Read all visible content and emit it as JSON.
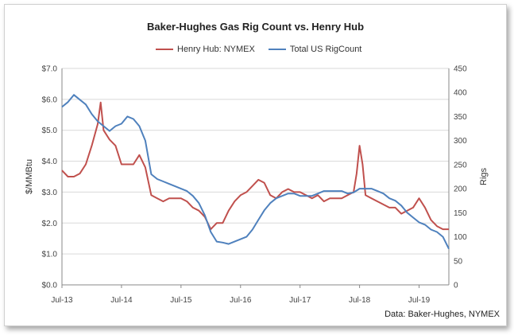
{
  "chart_data": {
    "type": "line",
    "title": "Baker-Hughes Gas Rig Count vs. Henry Hub",
    "source": "Data: Baker-Hughes, NYMEX",
    "ylabel_left": "$/MMBtu",
    "ylabel_right": "Rigs",
    "ylim_left": [
      0,
      7
    ],
    "ylim_right": [
      0,
      450
    ],
    "yticks_left": [
      "$0.0",
      "$1.0",
      "$2.0",
      "$3.0",
      "$4.0",
      "$5.0",
      "$6.0",
      "$7.0"
    ],
    "yticks_right": [
      "0",
      "50",
      "100",
      "150",
      "200",
      "250",
      "300",
      "350",
      "400",
      "450"
    ],
    "xticks": [
      "Jul-13",
      "Jul-14",
      "Jul-15",
      "Jul-16",
      "Jul-17",
      "Jul-18",
      "Jul-19"
    ],
    "x_range": [
      2013.5,
      2020.0
    ],
    "grid": "horizontal",
    "legend": "top-center",
    "series": [
      {
        "name": "Henry Hub: NYMEX",
        "axis": "left",
        "color": "#c0504d",
        "x": [
          2013.5,
          2013.6,
          2013.7,
          2013.8,
          2013.9,
          2014.0,
          2014.1,
          2014.15,
          2014.2,
          2014.3,
          2014.4,
          2014.5,
          2014.6,
          2014.7,
          2014.8,
          2014.9,
          2015.0,
          2015.1,
          2015.2,
          2015.3,
          2015.4,
          2015.5,
          2015.6,
          2015.7,
          2015.8,
          2015.9,
          2016.0,
          2016.1,
          2016.2,
          2016.3,
          2016.4,
          2016.5,
          2016.6,
          2016.7,
          2016.8,
          2016.9,
          2017.0,
          2017.1,
          2017.2,
          2017.3,
          2017.4,
          2017.5,
          2017.6,
          2017.7,
          2017.8,
          2017.9,
          2018.0,
          2018.1,
          2018.2,
          2018.3,
          2018.4,
          2018.45,
          2018.5,
          2018.55,
          2018.6,
          2018.7,
          2018.8,
          2018.9,
          2019.0,
          2019.1,
          2019.2,
          2019.3,
          2019.4,
          2019.5,
          2019.6,
          2019.7,
          2019.8,
          2019.9,
          2020.0
        ],
        "values": [
          3.7,
          3.5,
          3.5,
          3.6,
          3.9,
          4.5,
          5.2,
          5.9,
          5.0,
          4.7,
          4.5,
          3.9,
          3.9,
          3.9,
          4.2,
          3.8,
          2.9,
          2.8,
          2.7,
          2.8,
          2.8,
          2.8,
          2.7,
          2.5,
          2.4,
          2.2,
          1.8,
          2.0,
          2.0,
          2.4,
          2.7,
          2.9,
          3.0,
          3.2,
          3.4,
          3.3,
          2.9,
          2.8,
          3.0,
          3.1,
          3.0,
          3.0,
          2.9,
          2.8,
          2.9,
          2.7,
          2.8,
          2.8,
          2.8,
          2.9,
          3.0,
          3.6,
          4.5,
          3.9,
          2.9,
          2.8,
          2.7,
          2.6,
          2.5,
          2.5,
          2.3,
          2.4,
          2.5,
          2.8,
          2.5,
          2.1,
          1.9,
          1.8,
          1.8
        ]
      },
      {
        "name": "Total US RigCount",
        "axis": "right",
        "color": "#4f81bd",
        "x": [
          2013.5,
          2013.6,
          2013.7,
          2013.8,
          2013.9,
          2014.0,
          2014.1,
          2014.2,
          2014.3,
          2014.4,
          2014.5,
          2014.6,
          2014.7,
          2014.8,
          2014.9,
          2015.0,
          2015.1,
          2015.2,
          2015.3,
          2015.4,
          2015.5,
          2015.6,
          2015.7,
          2015.8,
          2015.9,
          2016.0,
          2016.1,
          2016.2,
          2016.3,
          2016.4,
          2016.5,
          2016.6,
          2016.7,
          2016.8,
          2016.9,
          2017.0,
          2017.1,
          2017.2,
          2017.3,
          2017.4,
          2017.5,
          2017.6,
          2017.7,
          2017.8,
          2017.9,
          2018.0,
          2018.1,
          2018.2,
          2018.3,
          2018.4,
          2018.5,
          2018.6,
          2018.7,
          2018.8,
          2018.9,
          2019.0,
          2019.1,
          2019.2,
          2019.3,
          2019.4,
          2019.5,
          2019.6,
          2019.7,
          2019.8,
          2019.9,
          2020.0
        ],
        "values": [
          370,
          380,
          395,
          385,
          375,
          355,
          340,
          330,
          320,
          330,
          335,
          350,
          345,
          330,
          300,
          230,
          220,
          215,
          210,
          205,
          200,
          195,
          185,
          170,
          145,
          110,
          90,
          88,
          85,
          90,
          95,
          100,
          115,
          135,
          155,
          170,
          180,
          185,
          190,
          190,
          185,
          185,
          185,
          190,
          195,
          195,
          195,
          195,
          190,
          192,
          200,
          200,
          200,
          195,
          190,
          180,
          175,
          165,
          150,
          140,
          130,
          125,
          115,
          110,
          100,
          75
        ]
      }
    ]
  }
}
